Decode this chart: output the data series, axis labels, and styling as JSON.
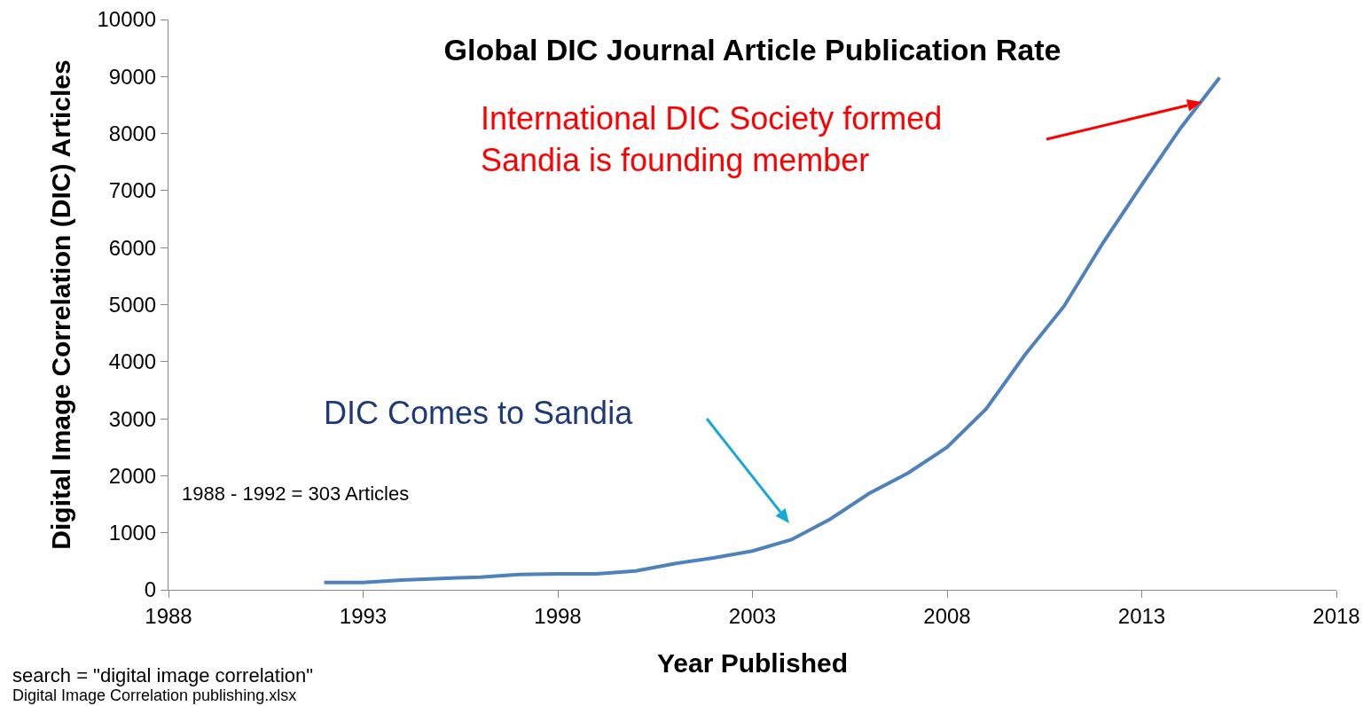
{
  "chart_data": {
    "type": "line",
    "title": "Global DIC Journal Article Publication Rate",
    "xlabel": "Year Published",
    "ylabel": "Digital Image Correlation (DIC) Articles",
    "x": [
      1992,
      1993,
      1994,
      1995,
      1996,
      1997,
      1998,
      1999,
      2000,
      2001,
      2002,
      2003,
      2004,
      2005,
      2006,
      2007,
      2008,
      2009,
      2010,
      2011,
      2012,
      2013,
      2014,
      2015
    ],
    "series": [
      {
        "color": "#4f81bd",
        "values": [
          130,
          130,
          170,
          200,
          220,
          270,
          280,
          280,
          330,
          460,
          560,
          680,
          880,
          1240,
          1690,
          2050,
          2500,
          3170,
          4120,
          4970,
          6080,
          7100,
          8100,
          8980
        ]
      }
    ],
    "xlim": [
      1988,
      2018
    ],
    "xticks": [
      1988,
      1993,
      1998,
      2003,
      2008,
      2013,
      2018
    ],
    "ylim": [
      0,
      10000
    ],
    "yticks": [
      0,
      1000,
      2000,
      3000,
      4000,
      5000,
      6000,
      7000,
      8000,
      9000,
      10000
    ],
    "grid": false,
    "marker": "none",
    "line_style": "solid",
    "annotations": [
      "International DIC Society formed\nSandia is founding member",
      "DIC Comes to Sandia",
      "1988 - 1992 = 303 Articles",
      "search = \"digital image correlation\"",
      "Digital Image Correlation publishing.xlsx"
    ]
  }
}
